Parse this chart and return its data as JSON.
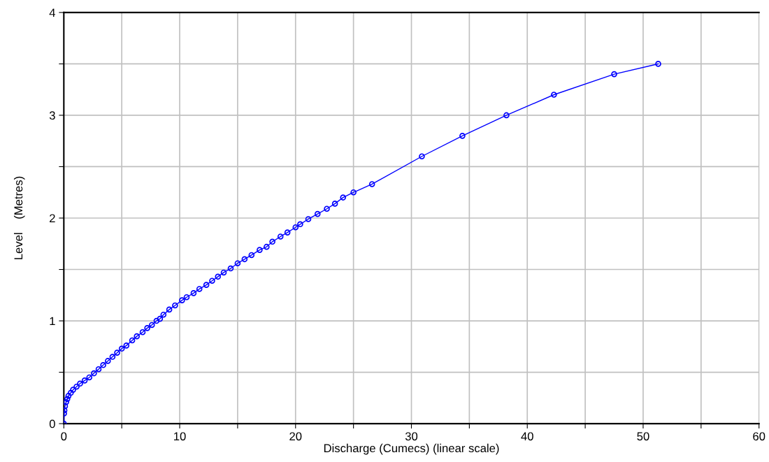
{
  "chart_data": {
    "type": "line",
    "xlabel": "Discharge (Cumecs) (linear scale)",
    "ylabel": "Level    (Metres)",
    "x": [
      0,
      0.02,
      0.05,
      0.1,
      0.2,
      0.3,
      0.4,
      0.6,
      0.8,
      1.1,
      1.4,
      1.8,
      2.2,
      2.6,
      3.0,
      3.4,
      3.8,
      4.2,
      4.6,
      5.0,
      5.4,
      5.9,
      6.3,
      6.8,
      7.2,
      7.6,
      8.0,
      8.3,
      8.6,
      9.1,
      9.6,
      10.2,
      10.6,
      11.2,
      11.7,
      12.3,
      12.8,
      13.3,
      13.8,
      14.4,
      15.0,
      15.6,
      16.2,
      16.9,
      17.5,
      18.0,
      18.7,
      19.3,
      20.0,
      20.4,
      21.1,
      21.9,
      22.7,
      23.4,
      24.1,
      25.0,
      26.6,
      30.9,
      34.4,
      38.2,
      42.3,
      47.5,
      51.3
    ],
    "series": [
      {
        "color": "#0000ff",
        "values": [
          0,
          0.1,
          0.13,
          0.17,
          0.21,
          0.24,
          0.27,
          0.3,
          0.33,
          0.36,
          0.39,
          0.42,
          0.45,
          0.49,
          0.53,
          0.57,
          0.61,
          0.65,
          0.69,
          0.73,
          0.76,
          0.81,
          0.85,
          0.89,
          0.93,
          0.96,
          1.0,
          1.02,
          1.06,
          1.11,
          1.15,
          1.2,
          1.23,
          1.27,
          1.31,
          1.35,
          1.39,
          1.43,
          1.47,
          1.51,
          1.56,
          1.6,
          1.64,
          1.69,
          1.72,
          1.77,
          1.82,
          1.86,
          1.91,
          1.94,
          1.99,
          2.04,
          2.09,
          2.14,
          2.2,
          2.25,
          2.33,
          2.6,
          2.8,
          3.0,
          3.2,
          3.4,
          3.5
        ]
      }
    ],
    "xlim": [
      0,
      60
    ],
    "ylim": [
      0,
      4
    ],
    "xticks": [
      0,
      {
        "value": 5,
        "label": null
      },
      10,
      {
        "value": 15,
        "label": null
      },
      20,
      {
        "value": 25,
        "label": null
      },
      30,
      {
        "value": 35,
        "label": null
      },
      40,
      {
        "value": 45,
        "label": null
      },
      50,
      {
        "value": 55,
        "label": null
      },
      60
    ],
    "yticks": [
      0,
      {
        "value": 0.5,
        "label": null
      },
      1,
      {
        "value": 1.5,
        "label": null
      },
      2,
      {
        "value": 2.5,
        "label": null
      },
      3,
      {
        "value": 3.5,
        "label": null
      },
      4
    ],
    "grid": true,
    "marker": "circle",
    "line_style": "solid",
    "legend": false
  }
}
